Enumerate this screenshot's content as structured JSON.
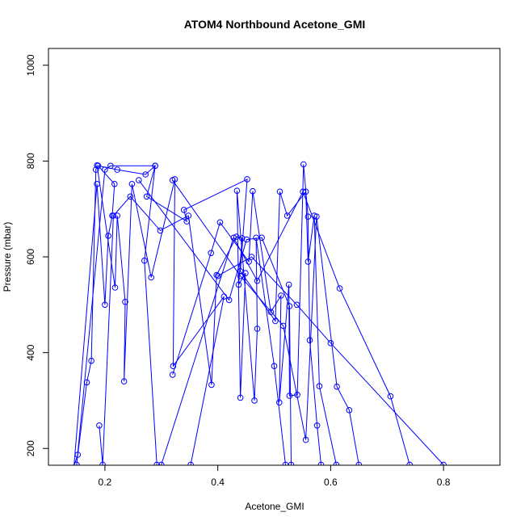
{
  "chart_data": {
    "type": "line",
    "title": "ATOM4 Northbound Acetone_GMI",
    "xlabel": "Acetone_GMI",
    "ylabel": "Pressure (mbar)",
    "xlim": [
      0.1,
      0.9
    ],
    "ylim": [
      1035,
      165
    ],
    "y_inverted": true,
    "grid": false,
    "line_color": "#0000ff",
    "marker": "open-circle",
    "x_ticks": [
      {
        "value": 0.2,
        "label": "0.2"
      },
      {
        "value": 0.4,
        "label": "0.4"
      },
      {
        "value": 0.6,
        "label": "0.6"
      },
      {
        "value": 0.8,
        "label": "0.8"
      }
    ],
    "y_ticks": [
      {
        "value": 200,
        "label": "200"
      },
      {
        "value": 400,
        "label": "400"
      },
      {
        "value": 600,
        "label": "600"
      },
      {
        "value": 800,
        "label": "800"
      },
      {
        "value": 1000,
        "label": "1000"
      }
    ],
    "series": [
      {
        "points": [
          [
            0.135,
            130
          ],
          [
            0.152,
            187
          ],
          [
            0.168,
            338
          ],
          [
            0.176,
            383
          ],
          [
            0.184,
            782
          ],
          [
            0.186,
            791
          ],
          [
            0.218,
            536
          ],
          [
            0.222,
            686
          ],
          [
            0.236,
            506
          ],
          [
            0.234,
            340
          ],
          [
            0.248,
            752
          ],
          [
            0.282,
            557
          ],
          [
            0.324,
            762
          ],
          [
            0.321,
            372
          ],
          [
            0.411,
            517
          ],
          [
            0.352,
            166
          ]
        ]
      },
      {
        "points": [
          [
            0.143,
            130
          ],
          [
            0.186,
            752
          ],
          [
            0.2,
            500
          ],
          [
            0.206,
            644
          ],
          [
            0.213,
            686
          ],
          [
            0.217,
            752
          ],
          [
            0.188,
            790
          ],
          [
            0.222,
            782
          ],
          [
            0.272,
            772
          ],
          [
            0.289,
            790
          ],
          [
            0.27,
            592
          ],
          [
            0.292,
            166
          ]
        ]
      },
      {
        "points": [
          [
            0.19,
            248
          ],
          [
            0.196,
            166
          ],
          [
            0.215,
            686
          ],
          [
            0.245,
            726
          ],
          [
            0.298,
            655
          ],
          [
            0.348,
            686
          ],
          [
            0.389,
            333
          ],
          [
            0.398,
            562
          ],
          [
            0.433,
            642
          ],
          [
            0.443,
            639
          ],
          [
            0.437,
            542
          ],
          [
            0.449,
            566
          ],
          [
            0.44,
            306
          ],
          [
            0.434,
            738
          ],
          [
            0.465,
            300
          ],
          [
            0.47,
            450
          ],
          [
            0.468,
            640
          ],
          [
            0.5,
            372
          ],
          [
            0.52,
            166
          ]
        ]
      },
      {
        "points": [
          [
            0.15,
            166
          ],
          [
            0.2,
            782
          ],
          [
            0.21,
            790
          ],
          [
            0.289,
            790
          ],
          [
            0.274,
            726
          ],
          [
            0.345,
            674
          ],
          [
            0.34,
            698
          ],
          [
            0.452,
            762
          ],
          [
            0.44,
            570
          ],
          [
            0.502,
            466
          ],
          [
            0.51,
            736
          ],
          [
            0.523,
            686
          ],
          [
            0.556,
            736
          ],
          [
            0.56,
            590
          ],
          [
            0.571,
            686
          ],
          [
            0.58,
            330
          ],
          [
            0.61,
            166
          ]
        ]
      },
      {
        "points": [
          [
            0.32,
            354
          ],
          [
            0.388,
            608
          ],
          [
            0.404,
            672
          ],
          [
            0.455,
            590
          ],
          [
            0.462,
            737
          ],
          [
            0.494,
            485
          ],
          [
            0.512,
            519
          ],
          [
            0.509,
            296
          ],
          [
            0.526,
            542
          ],
          [
            0.527,
            310
          ],
          [
            0.541,
            312
          ],
          [
            0.552,
            793
          ],
          [
            0.56,
            684
          ],
          [
            0.563,
            426
          ],
          [
            0.576,
            248
          ],
          [
            0.583,
            166
          ]
        ]
      },
      {
        "points": [
          [
            0.26,
            760
          ],
          [
            0.42,
            510
          ],
          [
            0.451,
            636
          ],
          [
            0.478,
            640
          ],
          [
            0.527,
            497
          ],
          [
            0.53,
            166
          ]
        ]
      },
      {
        "points": [
          [
            0.32,
            760
          ],
          [
            0.44,
            560
          ],
          [
            0.516,
            456
          ],
          [
            0.556,
            218
          ],
          [
            0.575,
            684
          ],
          [
            0.611,
            329
          ],
          [
            0.633,
            280
          ],
          [
            0.65,
            166
          ]
        ]
      },
      {
        "points": [
          [
            0.3,
            166
          ],
          [
            0.428,
            640
          ],
          [
            0.47,
            550
          ],
          [
            0.551,
            736
          ],
          [
            0.616,
            534
          ],
          [
            0.706,
            309
          ],
          [
            0.74,
            166
          ]
        ]
      },
      {
        "points": [
          [
            0.4,
            560
          ],
          [
            0.46,
            600
          ],
          [
            0.54,
            500
          ],
          [
            0.6,
            420
          ],
          [
            0.8,
            166
          ]
        ]
      }
    ]
  }
}
